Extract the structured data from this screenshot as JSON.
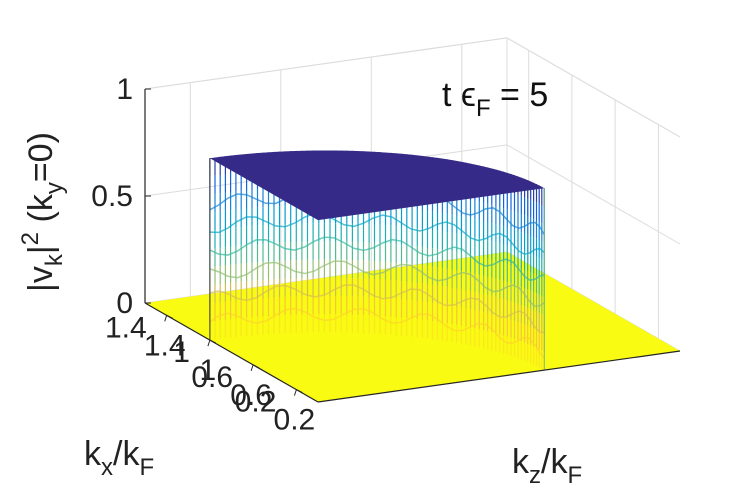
{
  "chart_data": {
    "type": "surface",
    "annotation": {
      "prefix": "t ",
      "symbol": "ϵ",
      "sub": "F",
      "suffix": " = 5"
    },
    "zlabel": {
      "part1": "|v",
      "sub1": "k",
      "part2": "|",
      "sup": "2",
      "part3": " (k",
      "sub2": "y",
      "part4": "=0)"
    },
    "xlabel": {
      "main": "k",
      "sub": "x",
      "slash": "/k",
      "sub2": "F"
    },
    "ylabel": {
      "main": "k",
      "sub": "z",
      "slash": "/k",
      "sub2": "F"
    },
    "x_ticks": [
      "0.2",
      "0.6",
      "1",
      "1.4"
    ],
    "y_ticks": [
      "0.2",
      "0.6",
      "1",
      "1.4"
    ],
    "z_ticks": [
      "0",
      "0.5",
      "1"
    ],
    "x_tick_values": [
      0.2,
      0.6,
      1.0,
      1.4
    ],
    "y_tick_values": [
      0.2,
      0.6,
      1.0,
      1.4
    ],
    "z_tick_values": [
      0,
      0.5,
      1
    ],
    "xlim": [
      0,
      1.6
    ],
    "ylim": [
      0,
      1.6
    ],
    "zlim": [
      0,
      1
    ],
    "plateau_value": 0.85,
    "fermi_radius": 1.0,
    "colormap": [
      "#352a87",
      "#0f5cdd",
      "#1481d6",
      "#06a4ca",
      "#2eb7a4",
      "#87bf77",
      "#d1bb59",
      "#fec832",
      "#f9fb0e"
    ],
    "grid": true
  }
}
